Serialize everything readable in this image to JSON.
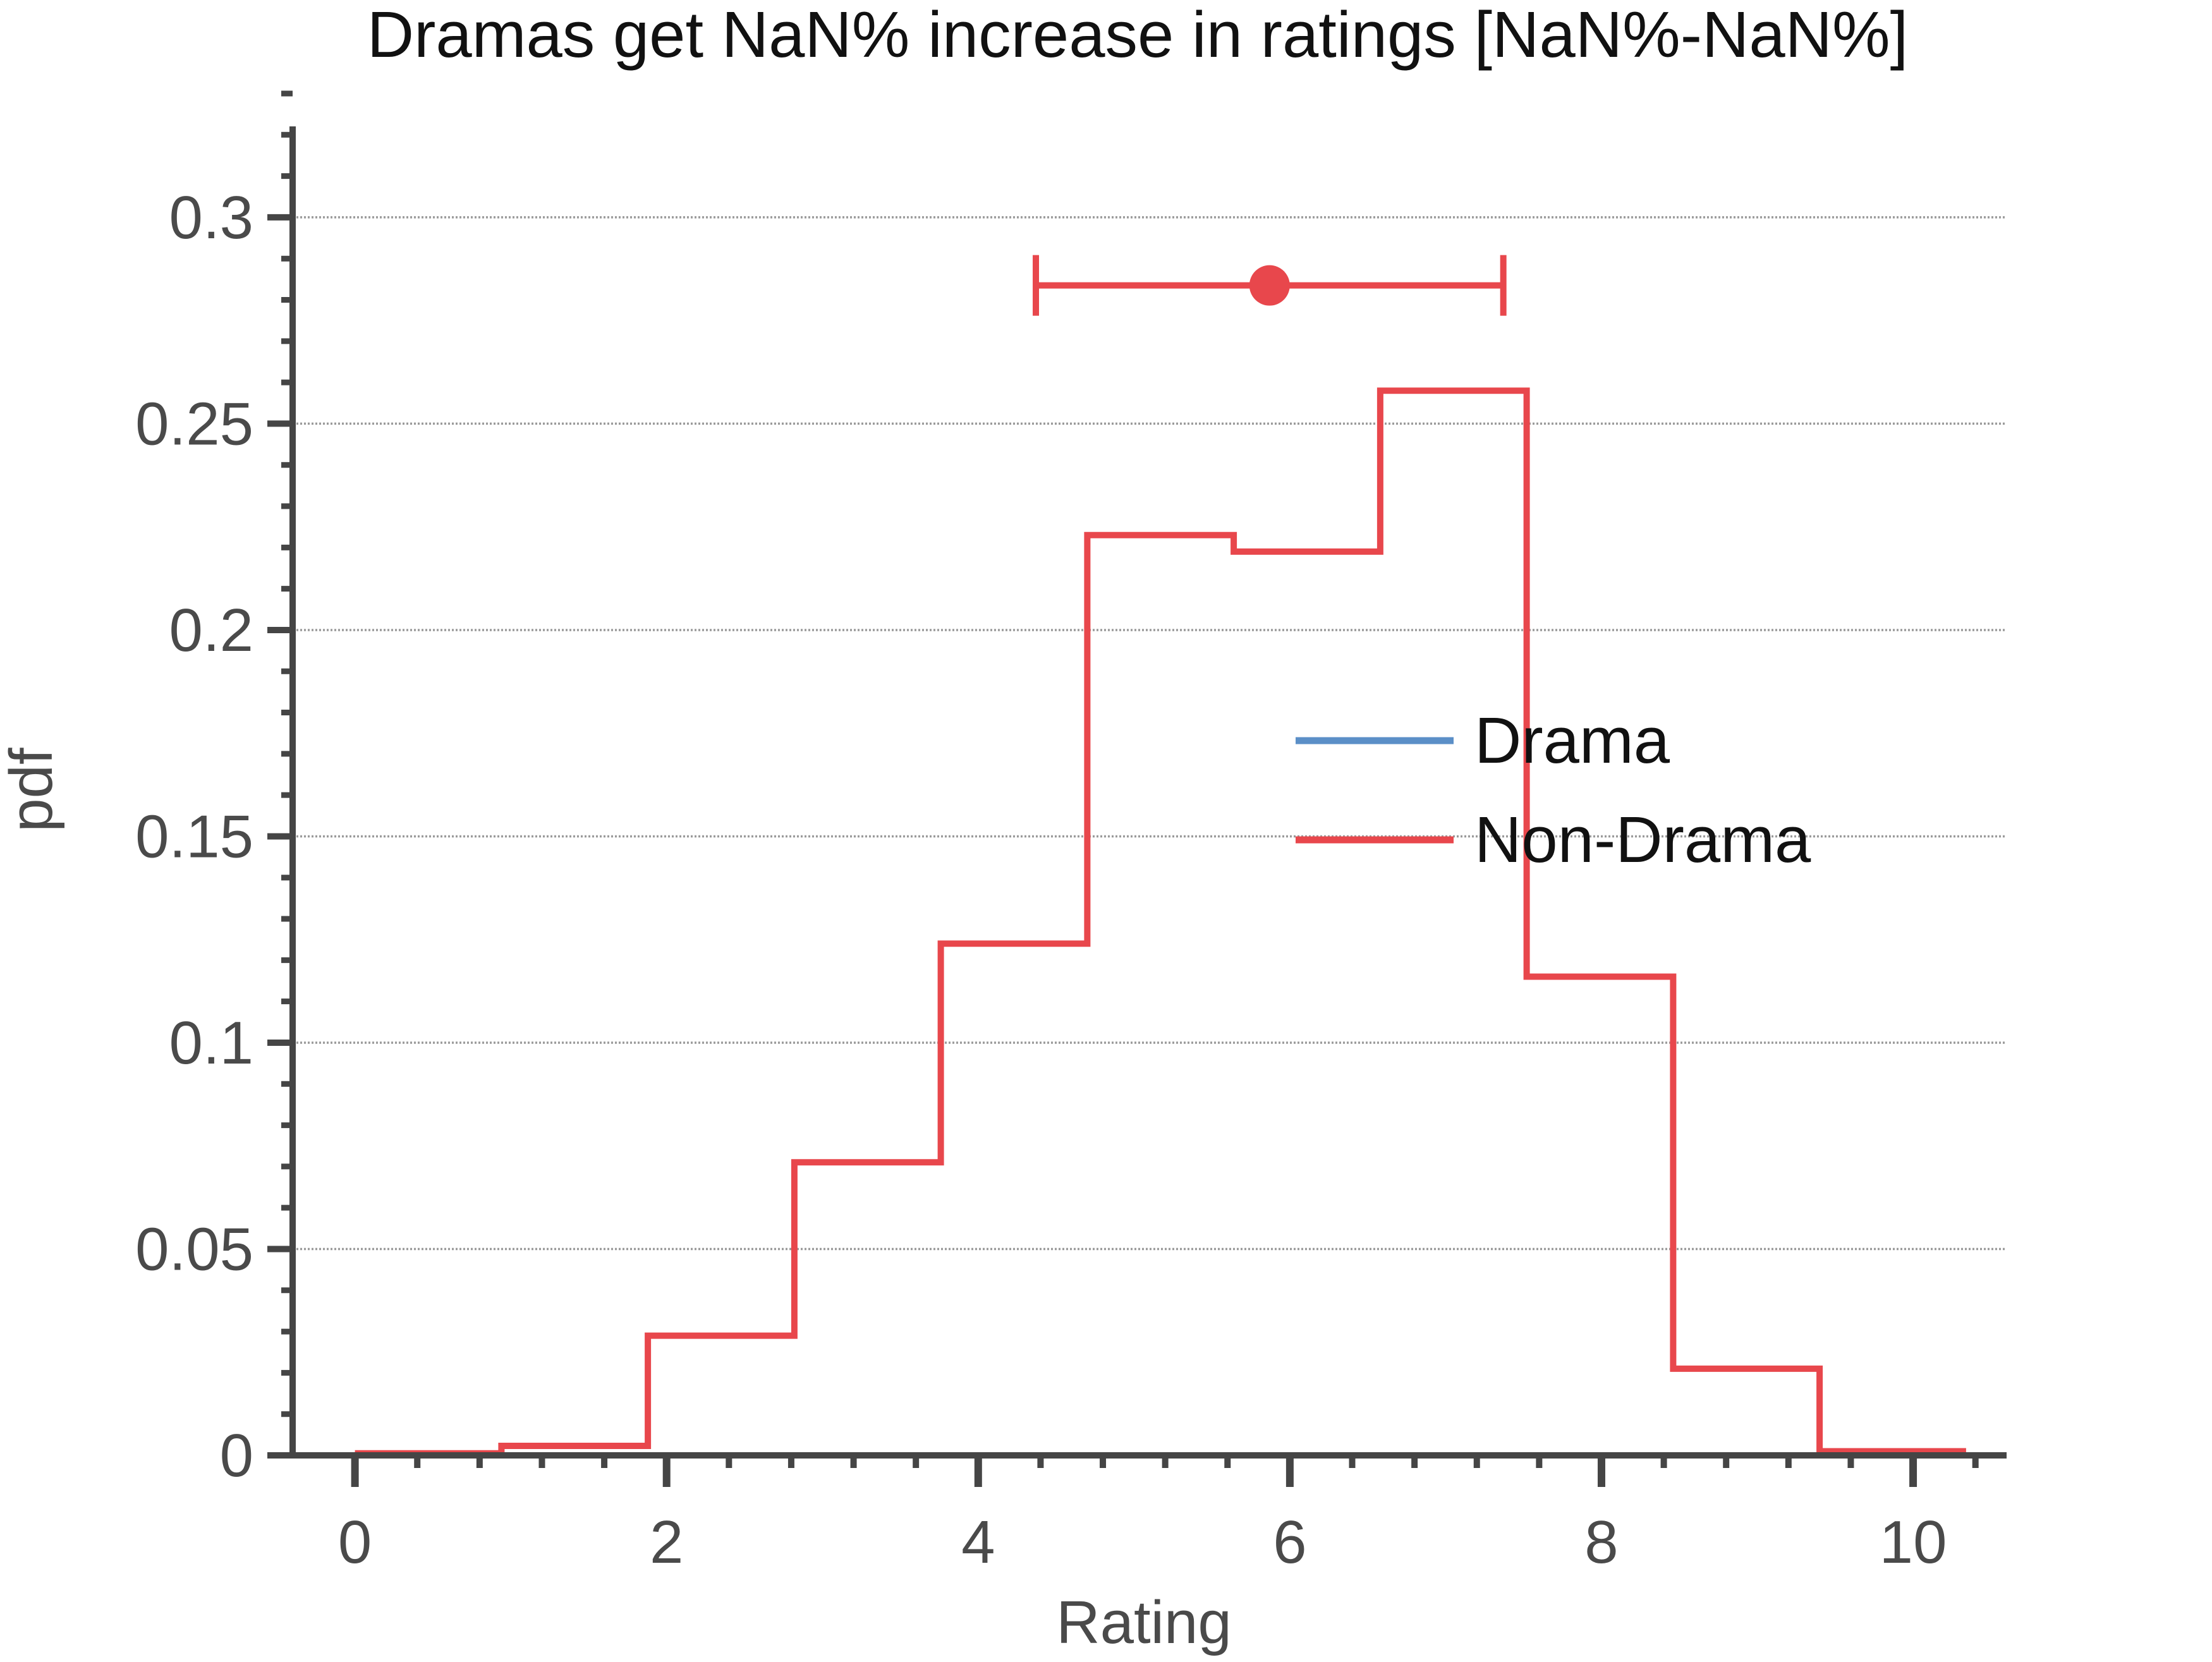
{
  "chart_data": {
    "type": "line",
    "title": "Dramas get NaN% increase in ratings [NaN%-NaN%]",
    "xlabel": "Rating",
    "ylabel": "pdf",
    "xlim": [
      -0.4,
      10.6
    ],
    "ylim": [
      0,
      0.33
    ],
    "xticks": [
      0,
      2,
      4,
      6,
      8,
      10
    ],
    "xtick_labels": [
      "0",
      "2",
      "4",
      "6",
      "8",
      "10"
    ],
    "xminor_step": 0.4,
    "yticks": [
      0,
      0.05,
      0.1,
      0.15,
      0.2,
      0.25,
      0.3
    ],
    "ytick_labels": [
      "0",
      "0.05",
      "0.1",
      "0.15",
      "0.2",
      "0.25",
      "0.3"
    ],
    "yminor_step": 0.01,
    "grid": "horizontal dotted",
    "legend_position": "right",
    "series": [
      {
        "name": "Drama",
        "color": "#5b8fc7",
        "style": "step",
        "edges": [],
        "values": []
      },
      {
        "name": "Non-Drama",
        "color": "#e8474c",
        "style": "step",
        "edges": [
          0,
          0.94,
          1.88,
          2.82,
          3.76,
          4.7,
          5.64,
          6.58,
          7.52,
          8.46,
          9.4,
          10.34
        ],
        "values": [
          0.0005,
          0.0023,
          0.029,
          0.071,
          0.124,
          0.223,
          0.219,
          0.258,
          0.116,
          0.021,
          0.001
        ]
      }
    ],
    "interval": {
      "series": "Non-Drama",
      "color": "#e8474c",
      "center": 5.87,
      "low": 4.37,
      "high": 7.37,
      "y": 0.2835
    }
  }
}
